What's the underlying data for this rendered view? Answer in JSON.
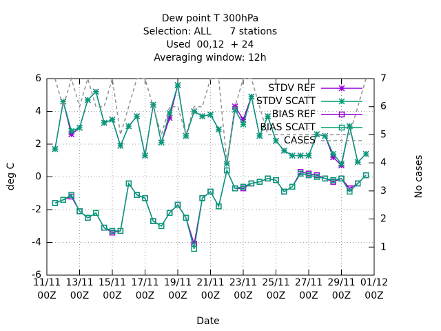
{
  "chart_data": {
    "type": "line",
    "title": [
      "Dew point T 300hPa",
      "Selection: ALL      7 stations",
      "Used  00,12  + 24",
      "Averaging window: 12h"
    ],
    "xlabel": "Date",
    "ylabel": "deg C",
    "y2label": "No cases",
    "categories": [
      "11/11\n00Z",
      null,
      null,
      null,
      "13/11\n00Z",
      null,
      null,
      null,
      "15/11\n00Z",
      null,
      null,
      null,
      "17/11\n00Z",
      null,
      null,
      null,
      "19/11\n00Z",
      null,
      null,
      null,
      "21/11\n00Z",
      null,
      null,
      null,
      "23/11\n00Z",
      null,
      null,
      null,
      "25/11\n00Z",
      null,
      null,
      null,
      "27/11\n00Z",
      null,
      null,
      null,
      "29/11\n00Z",
      null,
      null,
      null,
      "01/12\n00Z"
    ],
    "ylim": [
      -6,
      6
    ],
    "yticks": [
      -6,
      -4,
      -2,
      0,
      2,
      4,
      6
    ],
    "y2lim": [
      0,
      7
    ],
    "y2ticks": [
      1,
      2,
      3,
      4,
      5,
      6,
      7
    ],
    "grid": true,
    "legend": "top right",
    "series": [
      {
        "name": "STDV REF",
        "color": "#9400d3",
        "marker": "star",
        "values": [
          null,
          1.7,
          4.6,
          2.6,
          3.0,
          4.7,
          5.2,
          3.3,
          3.5,
          1.9,
          3.1,
          3.7,
          1.3,
          4.4,
          2.1,
          3.6,
          5.6,
          2.5,
          4.0,
          3.7,
          3.8,
          2.9,
          0.8,
          4.3,
          3.5,
          4.9,
          2.5,
          3.7,
          2.2,
          1.6,
          1.3,
          1.3,
          1.3,
          2.6,
          2.5,
          1.2,
          0.7,
          3.1,
          0.9,
          1.4,
          null
        ]
      },
      {
        "name": "STDV SCATT",
        "color": "#009e73",
        "marker": "star",
        "values": [
          null,
          1.7,
          4.6,
          2.8,
          3.0,
          4.7,
          5.2,
          3.3,
          3.5,
          1.9,
          3.1,
          3.7,
          1.3,
          4.4,
          2.1,
          3.9,
          5.6,
          2.5,
          4.0,
          3.7,
          3.8,
          2.9,
          0.8,
          4.1,
          3.2,
          4.9,
          2.5,
          3.7,
          2.2,
          1.6,
          1.3,
          1.3,
          1.3,
          2.6,
          2.5,
          1.4,
          0.8,
          3.1,
          0.9,
          1.4,
          null
        ]
      },
      {
        "name": "BIAS REF",
        "color": "#9400d3",
        "marker": "square",
        "values": [
          null,
          -1.6,
          -1.4,
          -1.2,
          -2.1,
          -2.5,
          -2.2,
          -3.1,
          -3.4,
          -3.3,
          -0.4,
          -1.1,
          -1.3,
          -2.7,
          -3.0,
          -2.2,
          -1.7,
          -2.5,
          -4.1,
          -1.3,
          -0.9,
          -1.8,
          0.4,
          -0.7,
          -0.7,
          -0.4,
          -0.3,
          -0.1,
          -0.2,
          -0.9,
          -0.6,
          0.3,
          0.2,
          0.1,
          -0.1,
          -0.3,
          -0.1,
          -0.7,
          -0.4,
          0.1,
          null
        ]
      },
      {
        "name": "BIAS SCATT",
        "color": "#009e73",
        "marker": "square",
        "values": [
          null,
          -1.6,
          -1.4,
          -1.1,
          -2.1,
          -2.5,
          -2.2,
          -3.1,
          -3.3,
          -3.3,
          -0.4,
          -1.1,
          -1.3,
          -2.7,
          -3.0,
          -2.2,
          -1.7,
          -2.5,
          -4.4,
          -1.3,
          -0.9,
          -1.8,
          0.4,
          -0.7,
          -0.6,
          -0.4,
          -0.3,
          -0.1,
          -0.2,
          -0.9,
          -0.6,
          0.2,
          0.1,
          0.0,
          -0.1,
          -0.2,
          -0.1,
          -0.9,
          -0.4,
          0.1,
          null
        ]
      },
      {
        "name": "CASES",
        "color": "#909090",
        "dashed": true,
        "axis": "y2",
        "values": [
          null,
          7,
          6,
          7,
          6,
          7,
          6,
          6,
          7,
          5,
          6,
          7,
          7,
          6,
          5,
          6,
          6,
          5,
          6,
          6,
          7,
          7,
          4,
          6,
          7,
          7,
          6,
          5,
          5,
          5,
          5,
          5,
          5,
          5,
          5,
          5,
          5,
          5,
          6,
          7,
          null
        ]
      }
    ]
  }
}
